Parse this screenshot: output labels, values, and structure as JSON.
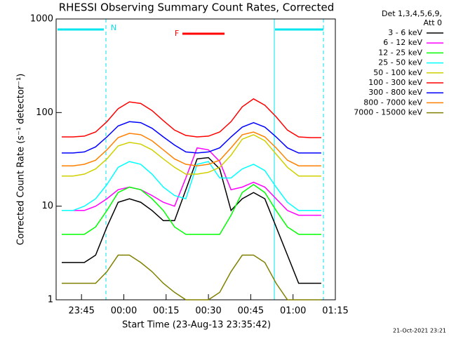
{
  "chart_data": {
    "type": "line",
    "title": "RHESSI Observing Summary Count Rates, Corrected",
    "x_label": "Start Time (23-Aug-13 23:35:42)",
    "y_label": "Corrected Count Rate (s⁻¹ detector⁻¹)",
    "legend_header": [
      "Det 1,3,4,5,6,9,",
      "Att 0"
    ],
    "footer": "21-Oct-2021 23:21",
    "annotations": [
      {
        "text": "N",
        "color": "#00e5ee"
      },
      {
        "text": "F",
        "color": "#ff0000"
      }
    ],
    "log_y": true,
    "xlim": [
      -24,
      75
    ],
    "ylim": [
      1,
      1000
    ],
    "xticks": [
      {
        "value": -15,
        "label": "23:45"
      },
      {
        "value": 0,
        "label": "00:00"
      },
      {
        "value": 15,
        "label": "00:15"
      },
      {
        "value": 30,
        "label": "00:30"
      },
      {
        "value": 45,
        "label": "00:45"
      },
      {
        "value": 60,
        "label": "01:00"
      },
      {
        "value": 75,
        "label": "01:15"
      }
    ],
    "yticks": [
      1,
      10,
      100,
      1000
    ],
    "x": [
      -22,
      -18,
      -14,
      -10,
      -6,
      -2,
      2,
      6,
      10,
      14,
      18,
      22,
      26,
      30,
      34,
      38,
      42,
      46,
      50,
      54,
      58,
      62,
      66,
      70
    ],
    "series": [
      {
        "name": "3 - 6 keV",
        "color": "#000000",
        "values": [
          2.5,
          2.5,
          2.5,
          3,
          6,
          11,
          12,
          11,
          9,
          7,
          7,
          15,
          32,
          33,
          25,
          9,
          12,
          14,
          12,
          6,
          3,
          1.5,
          1.5,
          1.5
        ]
      },
      {
        "name": "6 - 12 keV",
        "color": "#ff00ff",
        "values": [
          9,
          9,
          9,
          10,
          12,
          15,
          16,
          15,
          13,
          11,
          10,
          20,
          42,
          40,
          30,
          15,
          16,
          18,
          16,
          12,
          9,
          8,
          8,
          8
        ]
      },
      {
        "name": "12 - 25 keV",
        "color": "#00ff00",
        "values": [
          5,
          5,
          5,
          6,
          9,
          14,
          16,
          15,
          12,
          9,
          6,
          5,
          5,
          5,
          5,
          8,
          14,
          17,
          14,
          9,
          6,
          5,
          5,
          5
        ]
      },
      {
        "name": "25 - 50 keV",
        "color": "#00ffff",
        "values": [
          9,
          9,
          10,
          12,
          17,
          26,
          30,
          28,
          22,
          16,
          13,
          12,
          28,
          30,
          20,
          20,
          25,
          28,
          24,
          16,
          11,
          9,
          9,
          9
        ]
      },
      {
        "name": "50 - 100 keV",
        "color": "#d0d000",
        "values": [
          21,
          21,
          22,
          25,
          32,
          44,
          48,
          46,
          40,
          32,
          26,
          22,
          22,
          23,
          26,
          35,
          52,
          58,
          50,
          36,
          26,
          21,
          21,
          21
        ]
      },
      {
        "name": "100 - 300 keV",
        "color": "#ff0000",
        "values": [
          55,
          55,
          56,
          62,
          80,
          110,
          130,
          125,
          105,
          82,
          65,
          57,
          55,
          56,
          62,
          80,
          115,
          140,
          120,
          90,
          65,
          55,
          54,
          54
        ]
      },
      {
        "name": "300 - 800 keV",
        "color": "#0000ff",
        "values": [
          37,
          37,
          38,
          43,
          55,
          72,
          80,
          78,
          68,
          55,
          45,
          38,
          37,
          38,
          42,
          55,
          70,
          78,
          70,
          55,
          42,
          37,
          37,
          37
        ]
      },
      {
        "name": "800 - 7000 keV",
        "color": "#ff8000",
        "values": [
          27,
          27,
          28,
          31,
          40,
          54,
          60,
          58,
          50,
          40,
          32,
          28,
          27,
          28,
          31,
          42,
          58,
          62,
          55,
          42,
          31,
          27,
          27,
          27
        ]
      },
      {
        "name": "7000 - 15000 keV",
        "color": "#808000",
        "values": [
          1.5,
          1.5,
          1.5,
          1.5,
          2,
          3,
          3,
          2.5,
          2,
          1.5,
          1.2,
          1,
          1,
          1,
          1.2,
          2,
          3,
          3,
          2.5,
          1.5,
          1,
          1,
          1,
          1
        ]
      }
    ]
  }
}
